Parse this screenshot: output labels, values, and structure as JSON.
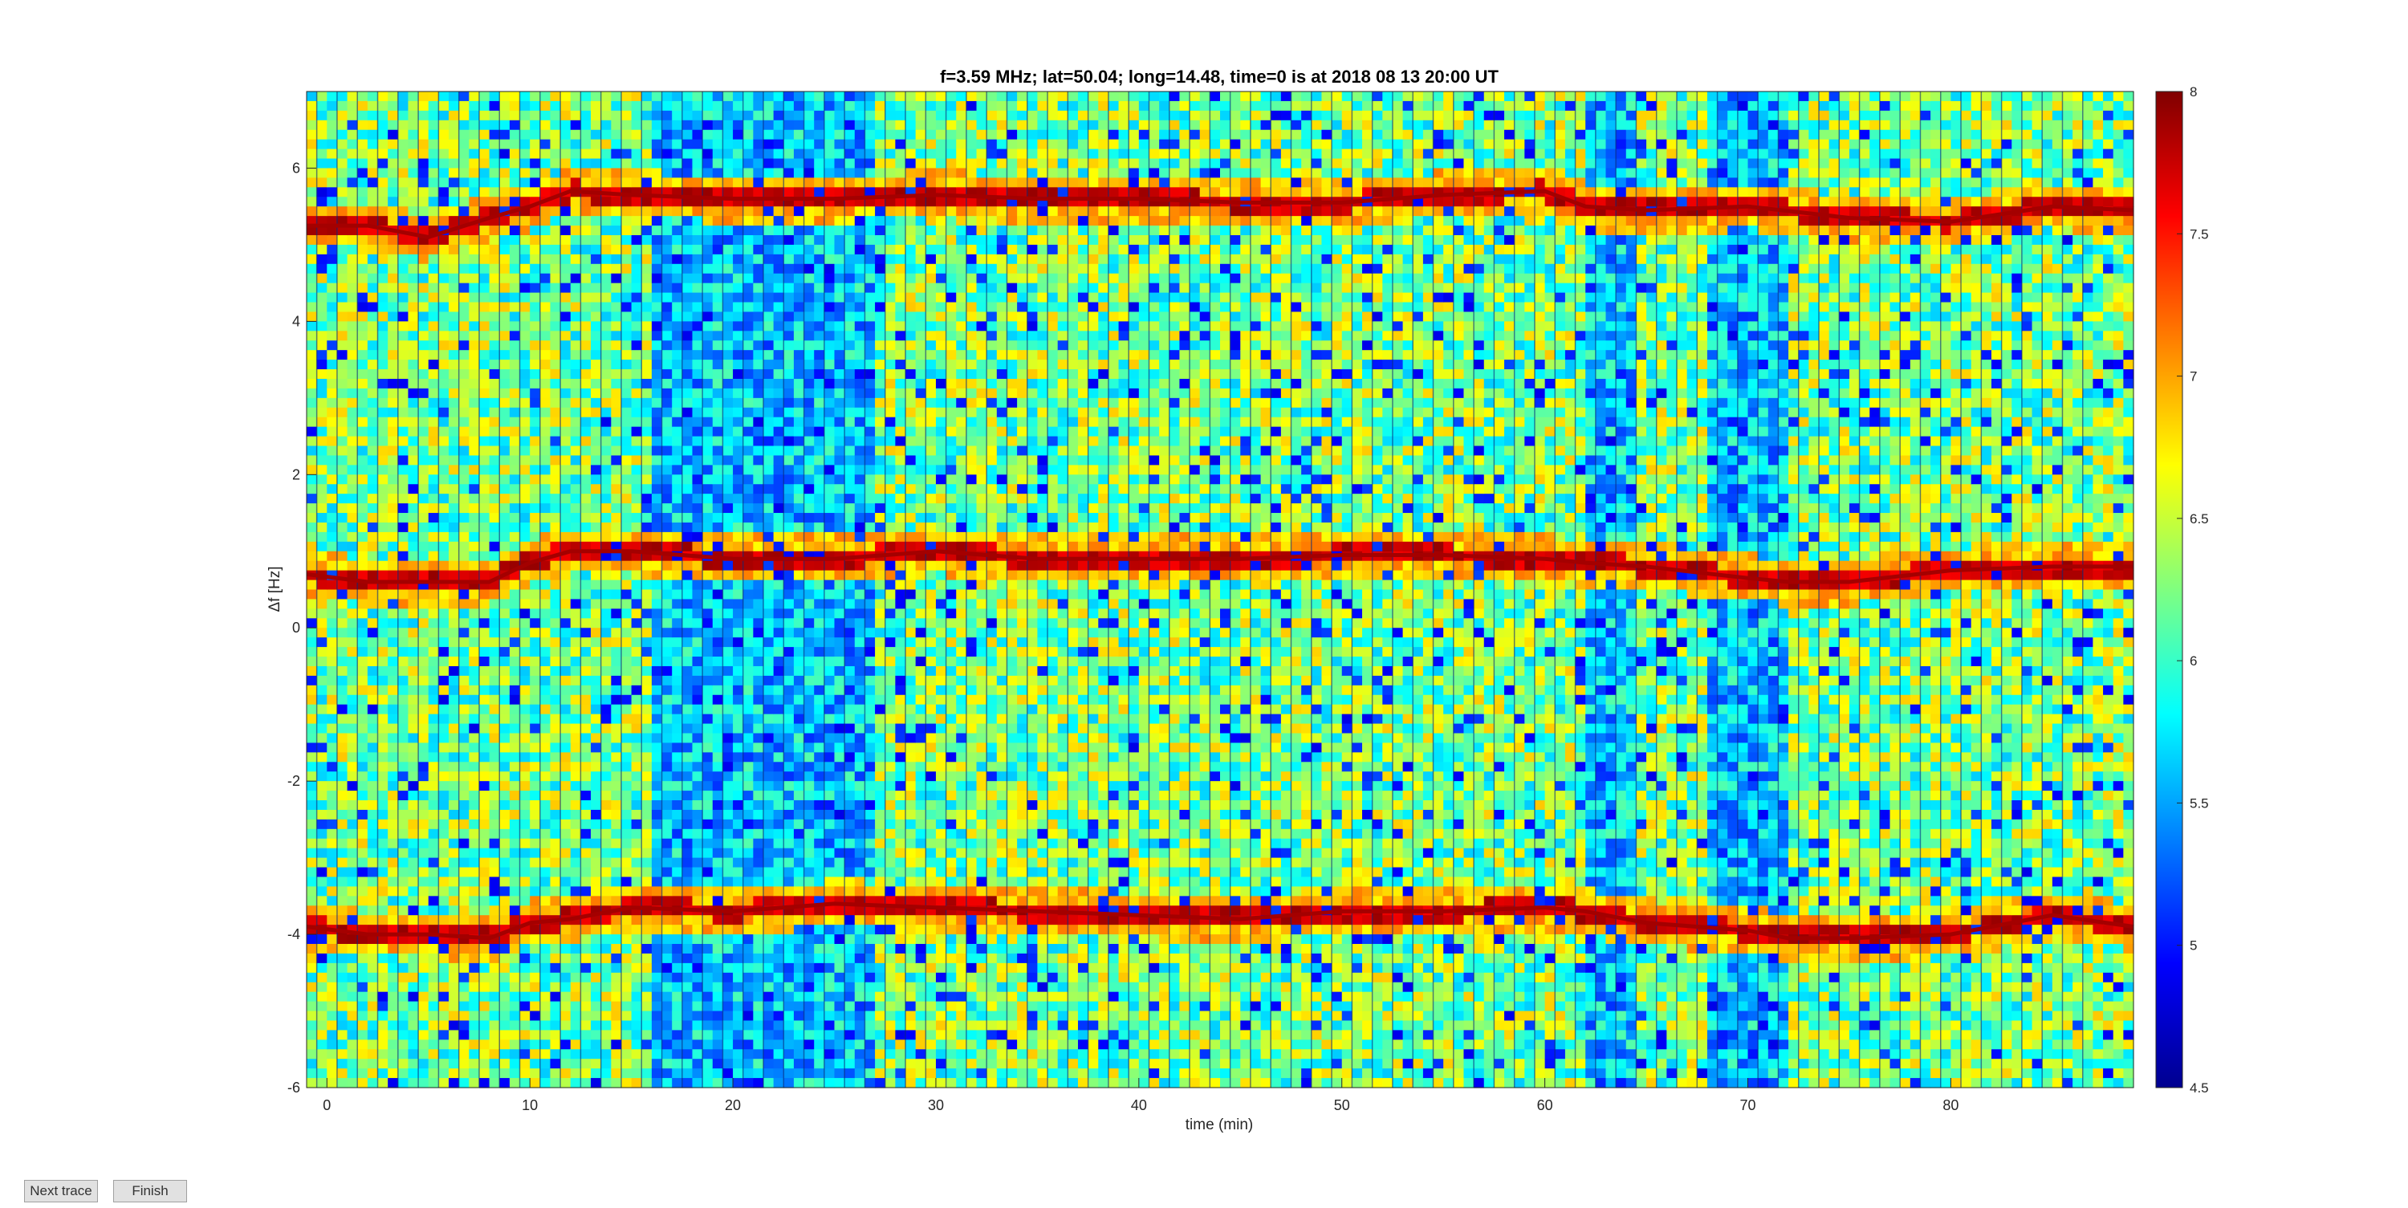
{
  "chart_data": {
    "type": "heatmap",
    "title": "f=3.59 MHz;  lat=50.04; long=14.48, time=0 is at 2018 08 13 20:00 UT",
    "xlabel": "time (min)",
    "ylabel": "Δf [Hz]",
    "xlim": [
      -1,
      89
    ],
    "ylim": [
      -6,
      7
    ],
    "x_ticks": [
      0,
      10,
      20,
      30,
      40,
      50,
      60,
      70,
      80
    ],
    "y_ticks": [
      -6,
      -4,
      -2,
      0,
      2,
      4,
      6
    ],
    "colorbar": {
      "min": 4.5,
      "max": 8,
      "ticks": [
        4.5,
        5,
        5.5,
        6,
        6.5,
        7,
        7.5,
        8
      ],
      "colormap": "jet"
    },
    "grid": false,
    "traces": [
      {
        "name": "",
        "x": [
          -1,
          2,
          5,
          8,
          10,
          12,
          15,
          20,
          25,
          30,
          35,
          40,
          45,
          50,
          55,
          60,
          62,
          65,
          70,
          75,
          80,
          85,
          89
        ],
        "y": [
          5.25,
          5.25,
          5.1,
          5.35,
          5.5,
          5.7,
          5.65,
          5.6,
          5.6,
          5.65,
          5.6,
          5.6,
          5.55,
          5.55,
          5.65,
          5.7,
          5.5,
          5.45,
          5.5,
          5.35,
          5.3,
          5.5,
          5.45
        ]
      },
      {
        "name": "",
        "x": [
          -1,
          2,
          5,
          8,
          10,
          12,
          15,
          20,
          25,
          30,
          35,
          40,
          45,
          50,
          55,
          60,
          62,
          65,
          70,
          72,
          75,
          80,
          85,
          89
        ],
        "y": [
          0.7,
          0.6,
          0.6,
          0.6,
          0.85,
          1.0,
          1.0,
          0.9,
          0.9,
          1.0,
          0.9,
          0.9,
          0.9,
          0.95,
          0.95,
          0.9,
          0.85,
          0.8,
          0.65,
          0.6,
          0.6,
          0.75,
          0.8,
          0.8
        ]
      },
      {
        "name": "",
        "x": [
          -1,
          2,
          5,
          8,
          10,
          12,
          15,
          20,
          25,
          30,
          35,
          40,
          45,
          50,
          55,
          60,
          62,
          65,
          70,
          72,
          75,
          80,
          85,
          89
        ],
        "y": [
          -3.9,
          -4.0,
          -4.0,
          -4.05,
          -3.85,
          -3.8,
          -3.65,
          -3.7,
          -3.6,
          -3.65,
          -3.7,
          -3.75,
          -3.8,
          -3.7,
          -3.7,
          -3.65,
          -3.7,
          -3.85,
          -3.95,
          -4.05,
          -4.05,
          -4.0,
          -3.75,
          -3.9
        ]
      }
    ],
    "dark_bands_min": [
      [
        16,
        20
      ],
      [
        20,
        27
      ],
      [
        62,
        64.5
      ],
      [
        68,
        72
      ]
    ]
  },
  "buttons": {
    "next": "Next trace",
    "finish": "Finish"
  },
  "colors": {
    "background": "#ffffff",
    "axis": "#262626"
  }
}
